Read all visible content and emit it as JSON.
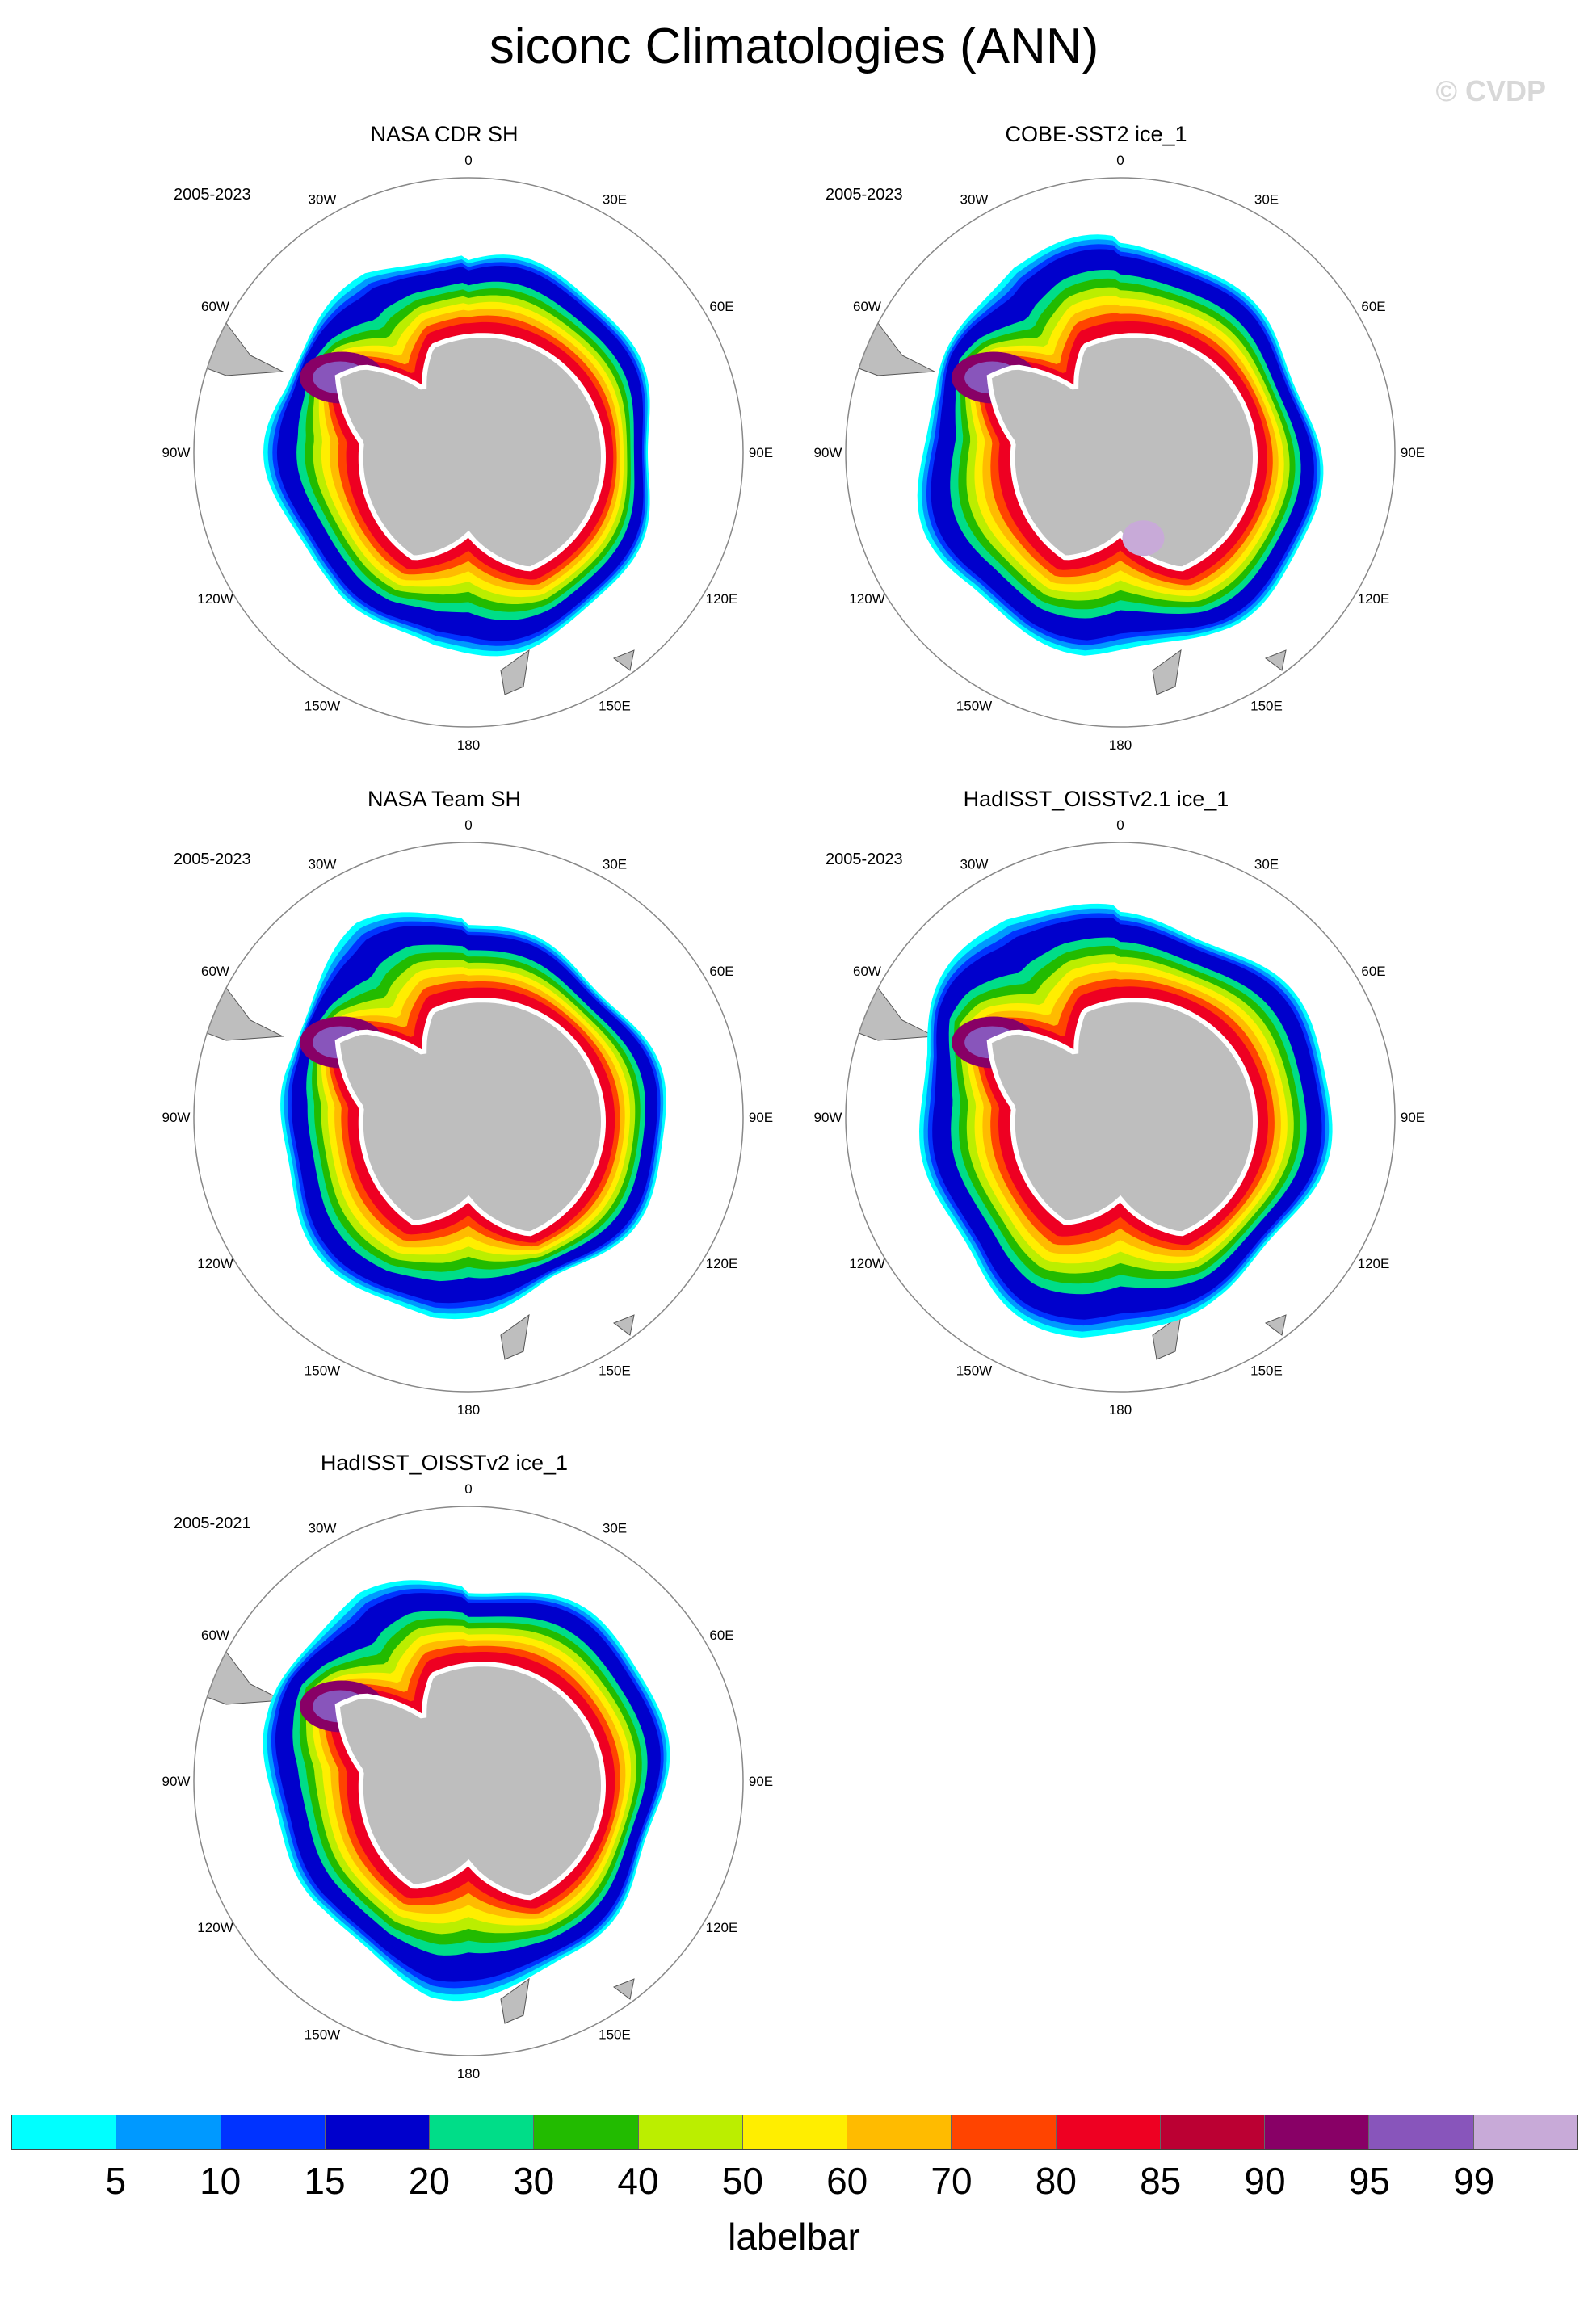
{
  "title": "siconc Climatologies (ANN)",
  "watermark": "© CVDP",
  "panels": [
    {
      "title": "NASA CDR SH",
      "period": "2005-2023",
      "ice_edge_deg_from_pole": 28,
      "has_hole": false
    },
    {
      "title": "COBE-SST2 ice_1",
      "period": "2005-2023",
      "ice_edge_deg_from_pole": 29,
      "has_hole": true
    },
    {
      "title": "NASA Team SH",
      "period": "2005-2023",
      "ice_edge_deg_from_pole": 28,
      "has_hole": false
    },
    {
      "title": "HadISST_OISSTv2.1 ice_1",
      "period": "2005-2023",
      "ice_edge_deg_from_pole": 30,
      "has_hole": false
    },
    {
      "title": "HadISST_OISSTv2 ice_1",
      "period": "2005-2021",
      "ice_edge_deg_from_pole": 29,
      "has_hole": false
    }
  ],
  "lon_labels": [
    "0",
    "30E",
    "60E",
    "90E",
    "120E",
    "150E",
    "180",
    "150W",
    "120W",
    "90W",
    "60W",
    "30W"
  ],
  "labelbar": {
    "title": "labelbar",
    "ticks": [
      "5",
      "10",
      "15",
      "20",
      "30",
      "40",
      "50",
      "60",
      "70",
      "80",
      "85",
      "90",
      "95",
      "99"
    ],
    "colors": [
      "#00ffff",
      "#0099ff",
      "#0033ff",
      "#0000cc",
      "#00dd88",
      "#22bb00",
      "#bbee00",
      "#ffee00",
      "#ffbb00",
      "#ff4400",
      "#ee0022",
      "#bb0033",
      "#880066",
      "#8855bb",
      "#c8aad8"
    ]
  },
  "land_color": "#bebebe"
}
